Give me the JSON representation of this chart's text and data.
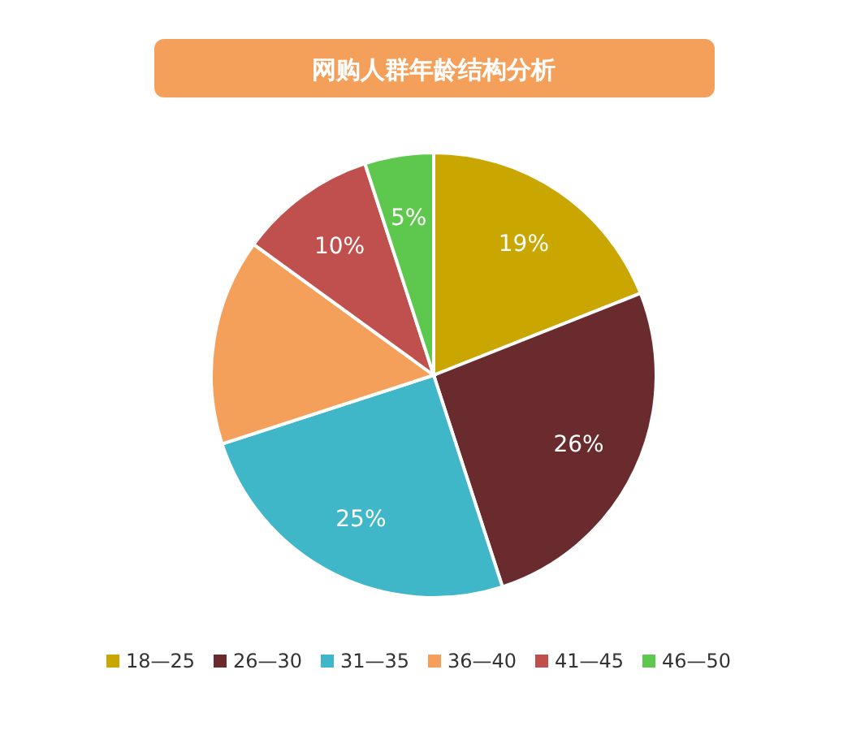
{
  "chart_data": {
    "type": "pie",
    "title": "网购人群年龄结构分析",
    "categories": [
      "18—25",
      "26—30",
      "31—35",
      "36—40",
      "41—45",
      "46—50"
    ],
    "values": [
      19,
      26,
      25,
      15,
      10,
      5
    ],
    "colors": [
      "#c9a600",
      "#6a2b2e",
      "#40b6c9",
      "#f5a05a",
      "#c0504d",
      "#5ec84e"
    ],
    "value_labels": [
      "19%",
      "26%",
      "25%",
      null,
      "10%",
      "5%"
    ],
    "legend": "bottom"
  }
}
